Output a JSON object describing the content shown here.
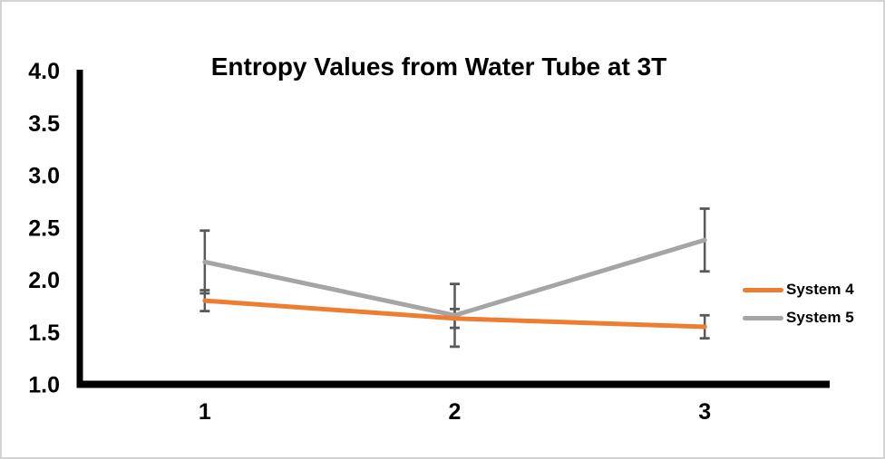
{
  "chart_data": {
    "type": "line",
    "title": "Entropy Values from Water Tube at 3T",
    "categories": [
      "1",
      "2",
      "3"
    ],
    "series": [
      {
        "name": "System 4",
        "color": "#ED7D31",
        "values": [
          1.8,
          1.63,
          1.55
        ],
        "errors": [
          0.1,
          0.09,
          0.11
        ]
      },
      {
        "name": "System 5",
        "color": "#A5A5A5",
        "values": [
          2.17,
          1.66,
          2.38
        ],
        "errors": [
          0.3,
          0.3,
          0.3
        ]
      }
    ],
    "xlabel": "",
    "ylabel": "",
    "ylim": [
      1.0,
      4.0
    ],
    "yticks": [
      4.0,
      3.5,
      3.0,
      2.5,
      2.0,
      1.5,
      1.0
    ],
    "ytick_labels": [
      "4.0",
      "3.5",
      "3.0",
      "2.5",
      "2.0",
      "1.5",
      "1.0"
    ],
    "grid": false,
    "legend_position": "right",
    "colors": {
      "axis": "#000000",
      "tick_text": "#000000",
      "title_text": "#000000",
      "error_bar": "#595959",
      "background": "#ffffff",
      "frame_border": "#d4d4d4"
    }
  }
}
